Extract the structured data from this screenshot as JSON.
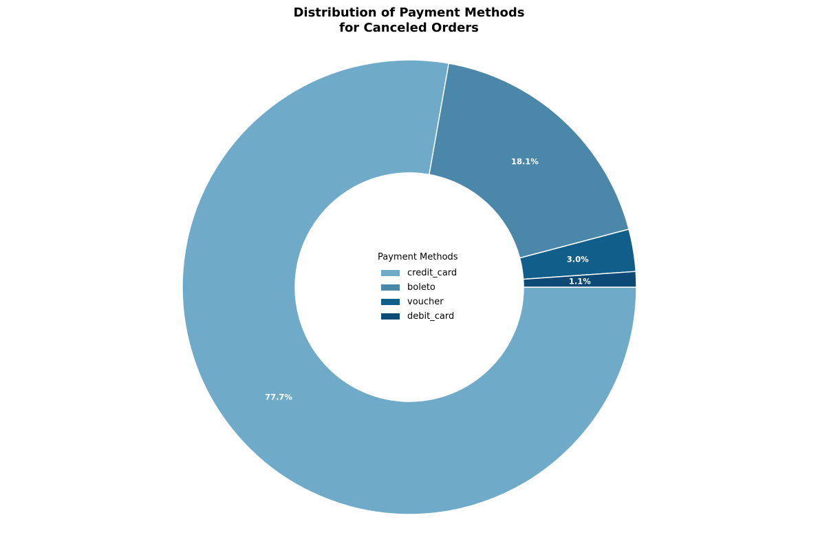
{
  "chart_data": {
    "type": "pie",
    "title": [
      "Distribution of Payment Methods",
      "for Canceled Orders"
    ],
    "legend_title": "Payment Methods",
    "legend_position": "center",
    "donut": true,
    "start_angle_deg": 0,
    "direction": "clockwise",
    "slices": [
      {
        "label": "credit_card",
        "value": 77.7,
        "display": "77.7%",
        "color": "#6FABC9"
      },
      {
        "label": "boleto",
        "value": 18.1,
        "display": "18.1%",
        "color": "#4A87A8"
      },
      {
        "label": "voucher",
        "value": 3.0,
        "display": "3.0%",
        "color": "#115E8A"
      },
      {
        "label": "debit_card",
        "value": 1.1,
        "display": "1.1%",
        "color": "#0D4A75"
      }
    ]
  }
}
